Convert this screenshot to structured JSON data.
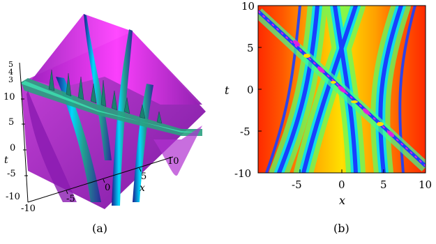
{
  "figure": {
    "panel_a": {
      "caption": "(a)",
      "x_label": "x",
      "t_label": "t",
      "z_ticks": [
        "5",
        "4",
        "3"
      ],
      "t_ticks": [
        "10",
        "5",
        "0",
        "-5",
        "-10"
      ],
      "x_ticks": [
        "-10",
        "-5",
        "0",
        "5",
        "10"
      ]
    },
    "panel_b": {
      "caption": "(b)",
      "x_label": "x",
      "y_label": "t",
      "y_ticks": [
        "10",
        "5",
        "0",
        "-5",
        "-10"
      ],
      "x_ticks": [
        "-5",
        "0",
        "5",
        "10"
      ]
    }
  },
  "colors": {
    "background_red": "#ff2a00",
    "orange": "#ff8a00",
    "yellow": "#ffe400",
    "green": "#3cff6a",
    "cyan": "#00e0ff",
    "blue": "#1840ff",
    "magenta": "#e020e0"
  }
}
